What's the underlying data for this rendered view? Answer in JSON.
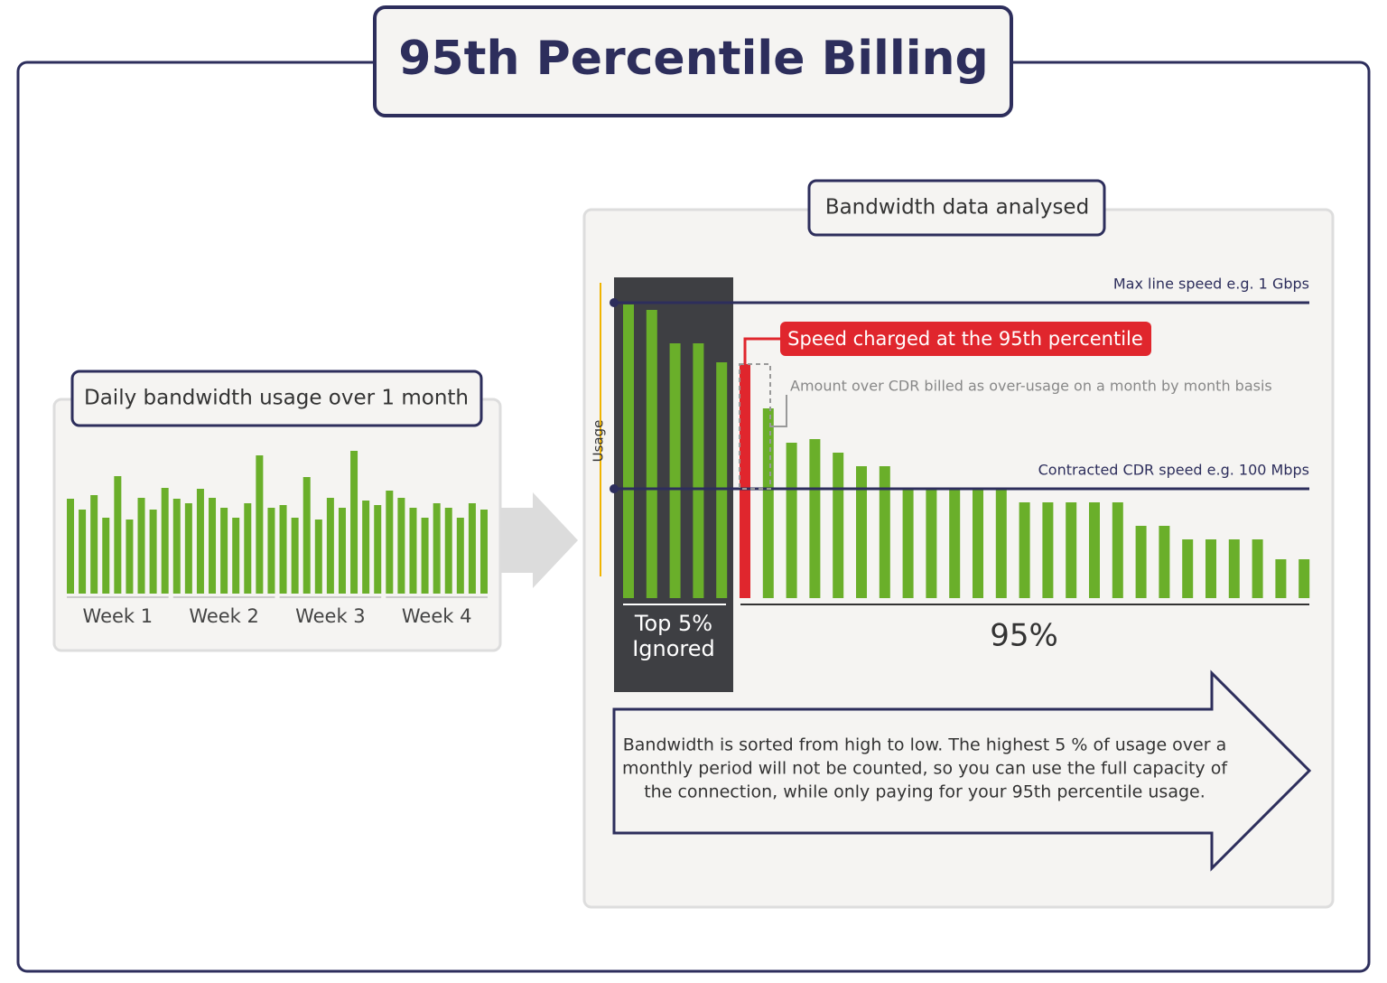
{
  "title": "95th Percentile Billing",
  "daily": {
    "title": "Daily bandwidth usage over 1 month",
    "weeks": [
      "Week 1",
      "Week 2",
      "Week 3",
      "Week 4"
    ],
    "color": "#6aaf2a",
    "values": [
      105,
      93,
      109,
      84,
      130,
      82,
      106,
      93,
      117,
      105,
      100,
      116,
      106,
      95,
      84,
      100,
      153,
      95,
      98,
      84,
      129,
      82,
      106,
      95,
      158,
      103,
      98,
      114,
      106,
      95,
      84,
      100,
      95,
      84,
      100,
      93
    ]
  },
  "analysed": {
    "title": "Bandwidth data analysed",
    "axis_label": "Usage",
    "max_line": {
      "label": "Max line speed e.g. 1 Gbps",
      "value": 327
    },
    "cdr_line": {
      "label": "Contracted CDR speed e.g. 100 Mbps",
      "value": 121
    },
    "charged_label": "Speed charged at the 95th percentile",
    "overage_label": "Amount over CDR billed as over-usage on a month by month basis",
    "ignored_label": [
      "Top 5%",
      "Ignored"
    ],
    "counted_label": "95%",
    "color": "#6aaf2a",
    "charged_color": "#e0262d",
    "ignored_count": 5,
    "values": [
      325,
      319,
      282,
      282,
      261,
      259,
      210,
      172,
      176,
      161,
      146,
      146,
      120,
      120,
      120,
      120,
      120,
      106,
      106,
      106,
      106,
      106,
      80,
      80,
      65,
      65,
      65,
      65,
      43,
      43
    ]
  },
  "text": {
    "lines": [
      "Bandwidth is sorted from high to low. The highest 5 % of usage over a",
      "monthly period will not be counted, so you can use the full capacity of",
      "the connection, while only paying for your 95th percentile usage."
    ]
  }
}
